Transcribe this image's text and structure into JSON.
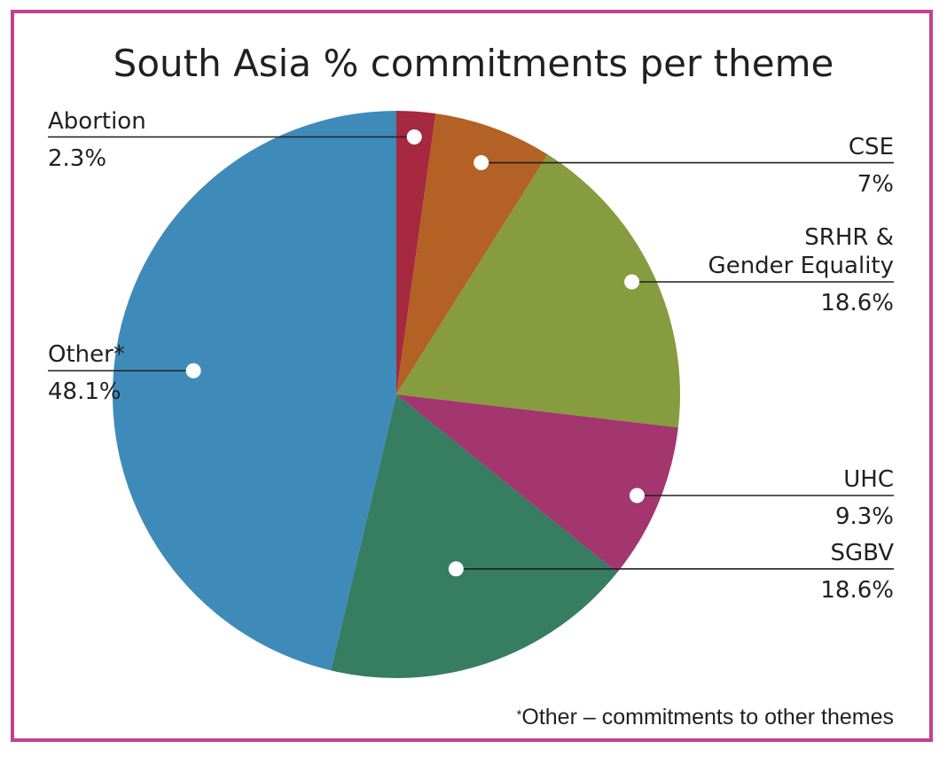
{
  "chart_data": {
    "type": "pie",
    "title": "South Asia % commitments per theme",
    "footnote": "Other – commitments to other themes",
    "slices": [
      {
        "name": "Abortion",
        "value": 2.3,
        "label": "2.3%",
        "color": "#a6293f"
      },
      {
        "name": "CSE",
        "value": 7,
        "label": "7%",
        "color": "#b36124"
      },
      {
        "name": "SRHR & Gender Equality",
        "name_lines": [
          "SRHR &",
          "Gender Equality"
        ],
        "value": 18.6,
        "label": "18.6%",
        "color": "#869c3e"
      },
      {
        "name": "UHC",
        "value": 9.3,
        "label": "9.3%",
        "color": "#a3366e"
      },
      {
        "name": "SGBV",
        "value": 18.6,
        "label": "18.6%",
        "color": "#367d62"
      },
      {
        "name": "Other*",
        "value": 48.1,
        "label": "48.1%",
        "color": "#3e8bba"
      }
    ]
  },
  "colors": {
    "frame": "#c4418b",
    "leader": "#231f20",
    "marker": "#ffffff"
  }
}
